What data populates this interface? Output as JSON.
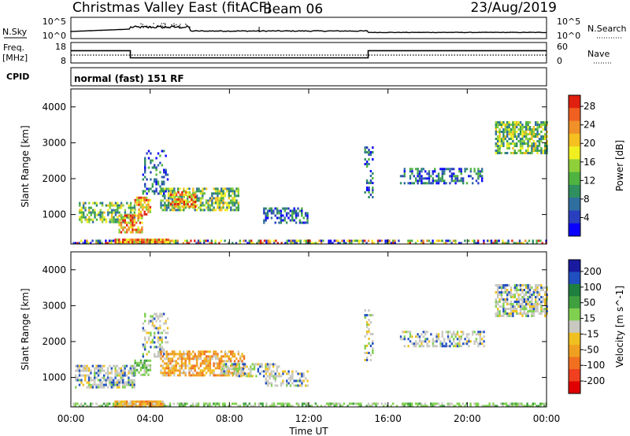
{
  "header": {
    "title": "Christmas Valley East (fitACF)",
    "beam": "Beam 06",
    "date": "23/Aug/2019"
  },
  "nsky_panel": {
    "left_label": "N.Sky",
    "right_label": "N.Search",
    "left_ticks": [
      "10^5",
      "10^0"
    ],
    "right_ticks": [
      "10^5",
      "10^0"
    ]
  },
  "freq_panel": {
    "left_label_line1": "Freq.",
    "left_label_line2": "[MHz]",
    "right_label": "Nave",
    "left_ticks": [
      "18",
      "8"
    ],
    "right_ticks": [
      "60",
      "0"
    ],
    "freq_steps": [
      {
        "start_h": 0.0,
        "end_h": 3.0,
        "mhz": 14.0
      },
      {
        "start_h": 3.0,
        "end_h": 15.0,
        "mhz": 10.5
      },
      {
        "start_h": 15.0,
        "end_h": 24.0,
        "mhz": 14.0
      }
    ],
    "nave_level": 23
  },
  "cpid": {
    "label": "CPID",
    "value": "normal (fast) 151 RF"
  },
  "chart_data": [
    {
      "type": "heatmap",
      "name": "Power",
      "ylabel": "Slant Range [km]",
      "xlabel": "Time UT",
      "xlim_hours": [
        0,
        24
      ],
      "ylim_km": [
        180,
        4500
      ],
      "x_ticks": [
        "00:00",
        "04:00",
        "08:00",
        "12:00",
        "16:00",
        "20:00",
        "00:00"
      ],
      "y_ticks": [
        1000,
        2000,
        3000,
        4000
      ],
      "colorbar": {
        "label": "Power [dB]",
        "ticks": [
          "4",
          "8",
          "12",
          "16",
          "20",
          "24",
          "28"
        ],
        "colors": [
          "#0a00ff",
          "#2a3fbf",
          "#2f6f9f",
          "#2f8f5f",
          "#4fb340",
          "#8fd03a",
          "#f0f020",
          "#f5c020",
          "#f09028",
          "#f06020",
          "#e02010"
        ]
      },
      "echo_regions": [
        {
          "t0": 0.0,
          "t1": 24.0,
          "r0": 190,
          "r1": 300,
          "level": "mixed",
          "density": 0.55
        },
        {
          "t0": 2.2,
          "t1": 4.9,
          "r0": 200,
          "r1": 330,
          "level": "strong",
          "density": 0.95
        },
        {
          "t0": 0.4,
          "t1": 3.2,
          "r0": 800,
          "r1": 1350,
          "level": "medium",
          "density": 0.6
        },
        {
          "t0": 2.4,
          "t1": 3.6,
          "r0": 500,
          "r1": 1000,
          "level": "strong",
          "density": 0.7
        },
        {
          "t0": 3.2,
          "t1": 4.0,
          "r0": 1000,
          "r1": 1500,
          "level": "strong",
          "density": 0.7
        },
        {
          "t0": 3.6,
          "t1": 4.9,
          "r0": 1600,
          "r1": 2800,
          "level": "low",
          "density": 0.35
        },
        {
          "t0": 4.5,
          "t1": 8.5,
          "r0": 1100,
          "r1": 1750,
          "level": "medium",
          "density": 0.65
        },
        {
          "t0": 5.0,
          "t1": 6.3,
          "r0": 1250,
          "r1": 1650,
          "level": "strong",
          "density": 0.7
        },
        {
          "t0": 9.7,
          "t1": 11.9,
          "r0": 800,
          "r1": 1200,
          "level": "low",
          "density": 0.55
        },
        {
          "t0": 14.8,
          "t1": 15.2,
          "r0": 1500,
          "r1": 2900,
          "level": "low",
          "density": 0.35
        },
        {
          "t0": 16.6,
          "t1": 20.8,
          "r0": 1900,
          "r1": 2300,
          "level": "low",
          "density": 0.45
        },
        {
          "t0": 21.4,
          "t1": 24.0,
          "r0": 2700,
          "r1": 3600,
          "level": "medium",
          "density": 0.7
        }
      ]
    },
    {
      "type": "heatmap",
      "name": "Velocity",
      "ylabel": "Slant Range [km]",
      "xlabel": "Time UT",
      "xlim_hours": [
        0,
        24
      ],
      "ylim_km": [
        180,
        4500
      ],
      "x_ticks": [
        "00:00",
        "04:00",
        "08:00",
        "12:00",
        "16:00",
        "20:00",
        "00:00"
      ],
      "y_ticks": [
        1000,
        2000,
        3000,
        4000
      ],
      "colorbar": {
        "label": "Velocity [m s^-1]",
        "ticks": [
          "200",
          "100",
          "50",
          "15",
          "-15",
          "-50",
          "-100",
          "-200"
        ],
        "colors": [
          "#1a1aa0",
          "#2050c0",
          "#1f7f3f",
          "#40a040",
          "#80d050",
          "#c8c8c0",
          "#f0c020",
          "#f0a020",
          "#f07020",
          "#f04020",
          "#e00000"
        ]
      },
      "echo_regions": [
        {
          "t0": 0.0,
          "t1": 24.0,
          "r0": 190,
          "r1": 300,
          "level": "green",
          "density": 0.6
        },
        {
          "t0": 2.2,
          "t1": 4.6,
          "r0": 200,
          "r1": 360,
          "level": "orange",
          "density": 0.9
        },
        {
          "t0": 0.2,
          "t1": 3.2,
          "r0": 700,
          "r1": 1350,
          "level": "grey",
          "density": 0.7
        },
        {
          "t0": 3.2,
          "t1": 4.0,
          "r0": 1100,
          "r1": 1500,
          "level": "green",
          "density": 0.55
        },
        {
          "t0": 3.6,
          "t1": 4.9,
          "r0": 1600,
          "r1": 2800,
          "level": "grey",
          "density": 0.35
        },
        {
          "t0": 4.5,
          "t1": 8.7,
          "r0": 1050,
          "r1": 1750,
          "level": "orange",
          "density": 0.65
        },
        {
          "t0": 7.5,
          "t1": 10.5,
          "r0": 1050,
          "r1": 1400,
          "level": "grey",
          "density": 0.55
        },
        {
          "t0": 9.8,
          "t1": 11.9,
          "r0": 800,
          "r1": 1200,
          "level": "grey",
          "density": 0.5
        },
        {
          "t0": 14.8,
          "t1": 15.2,
          "r0": 1500,
          "r1": 2900,
          "level": "grey",
          "density": 0.35
        },
        {
          "t0": 16.6,
          "t1": 20.8,
          "r0": 1900,
          "r1": 2300,
          "level": "grey",
          "density": 0.45
        },
        {
          "t0": 21.4,
          "t1": 24.0,
          "r0": 2700,
          "r1": 3600,
          "level": "grey",
          "density": 0.7
        }
      ]
    }
  ]
}
